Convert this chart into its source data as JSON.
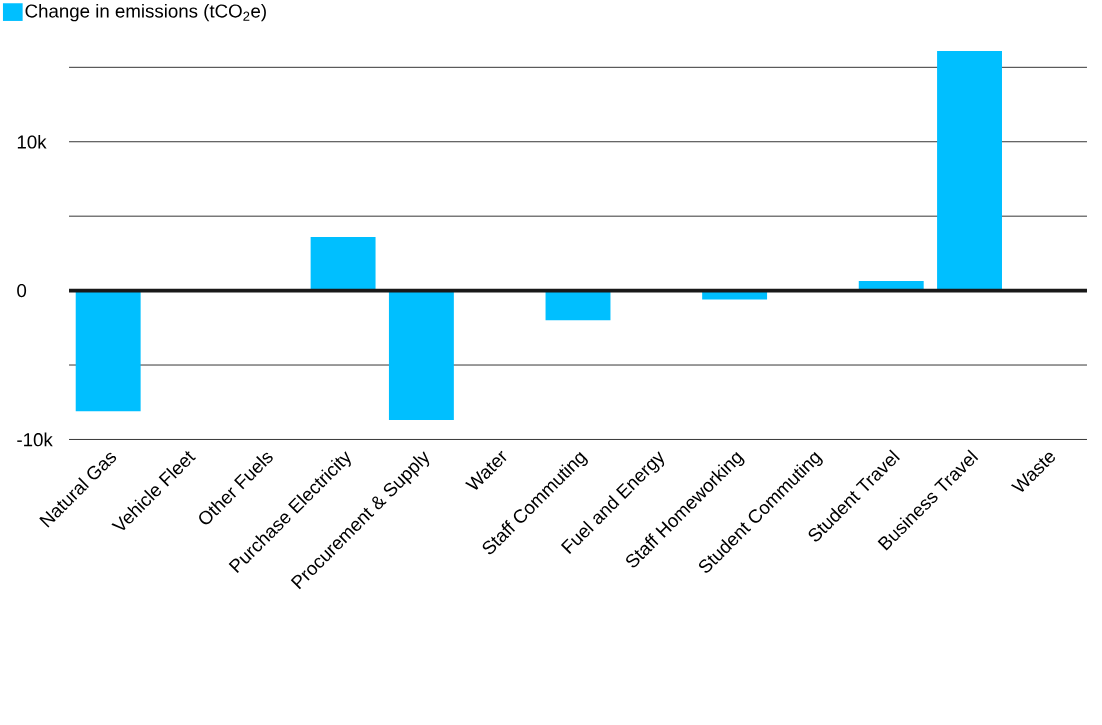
{
  "chart_data": {
    "type": "bar",
    "categories": [
      "Natural Gas",
      "Vehicle Fleet",
      "Other Fuels",
      "Purchase Electricity",
      "Procurement & Supply",
      "Water",
      "Staff Commuting",
      "Fuel and Energy",
      "Staff Homeworking",
      "Student Commuting",
      "Student Travel",
      "Business Travel",
      "Waste"
    ],
    "series": [
      {
        "name": "Change in emissions (tCO$_{2}$e)",
        "color": "#00bfff",
        "values": [
          -8100,
          0,
          0,
          3600,
          -8700,
          0,
          -2000,
          0,
          -600,
          0,
          650,
          16100,
          0
        ]
      }
    ],
    "ylim": [
      -10000,
      16100
    ],
    "yticks": [
      {
        "value": -10000,
        "label": "-10k"
      },
      {
        "value": -5000,
        "label": null
      },
      0,
      {
        "value": 10000,
        "label": "10k"
      },
      {
        "value": 5000,
        "label": null
      },
      {
        "value": 15000,
        "label": null
      }
    ],
    "grid": "y",
    "legend": "top left"
  }
}
